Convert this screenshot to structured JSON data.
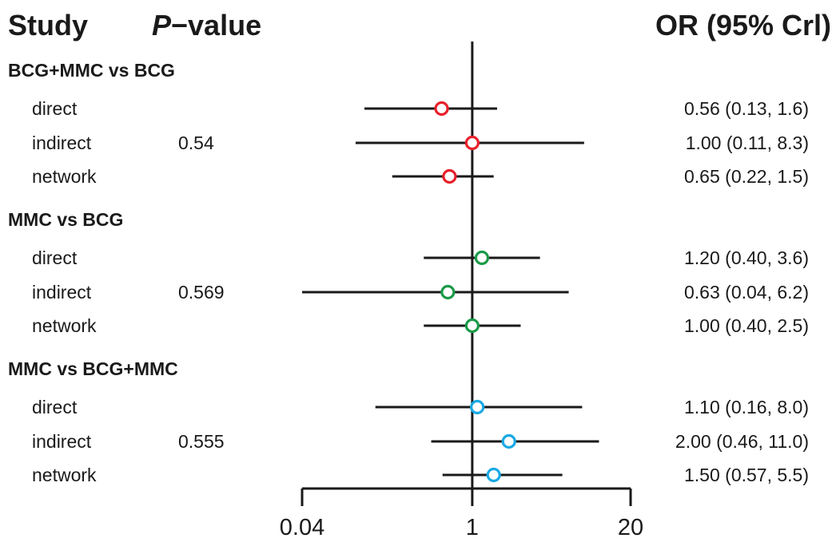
{
  "headers": {
    "study": "Study",
    "pvalue_italic": "P",
    "pvalue_rest": "−value",
    "or": "OR (95% Crl)"
  },
  "chart_data": {
    "type": "forest",
    "x_scale": "log",
    "xlim": [
      0.04,
      20
    ],
    "xticks": [
      {
        "value": 0.04,
        "label": "0.04"
      },
      {
        "value": 1,
        "label": "1"
      },
      {
        "value": 20,
        "label": "20"
      }
    ],
    "reference_line": 1,
    "groups": [
      {
        "label": "BCG+MMC vs BCG",
        "p_value": "0.54",
        "color": "#e8202a",
        "rows": [
          {
            "label": "direct",
            "or": 0.56,
            "lo": 0.13,
            "hi": 1.6,
            "text": "0.56 (0.13, 1.6)"
          },
          {
            "label": "indirect",
            "or": 1.0,
            "lo": 0.11,
            "hi": 8.3,
            "text": "1.00 (0.11, 8.3)"
          },
          {
            "label": "network",
            "or": 0.65,
            "lo": 0.22,
            "hi": 1.5,
            "text": "0.65 (0.22, 1.5)"
          }
        ]
      },
      {
        "label": "MMC vs BCG",
        "p_value": "0.569",
        "color": "#1a9a48",
        "rows": [
          {
            "label": "direct",
            "or": 1.2,
            "lo": 0.4,
            "hi": 3.6,
            "text": "1.20 (0.40, 3.6)"
          },
          {
            "label": "indirect",
            "or": 0.63,
            "lo": 0.04,
            "hi": 6.2,
            "text": "0.63 (0.04, 6.2)"
          },
          {
            "label": "network",
            "or": 1.0,
            "lo": 0.4,
            "hi": 2.5,
            "text": "1.00 (0.40, 2.5)"
          }
        ]
      },
      {
        "label": "MMC vs BCG+MMC",
        "p_value": "0.555",
        "color": "#19a9e3",
        "rows": [
          {
            "label": "direct",
            "or": 1.1,
            "lo": 0.16,
            "hi": 8.0,
            "text": "1.10 (0.16, 8.0)"
          },
          {
            "label": "indirect",
            "or": 2.0,
            "lo": 0.46,
            "hi": 11.0,
            "text": "2.00 (0.46, 11.0)"
          },
          {
            "label": "network",
            "or": 1.5,
            "lo": 0.57,
            "hi": 5.5,
            "text": "1.50 (0.57, 5.5)"
          }
        ]
      }
    ]
  }
}
